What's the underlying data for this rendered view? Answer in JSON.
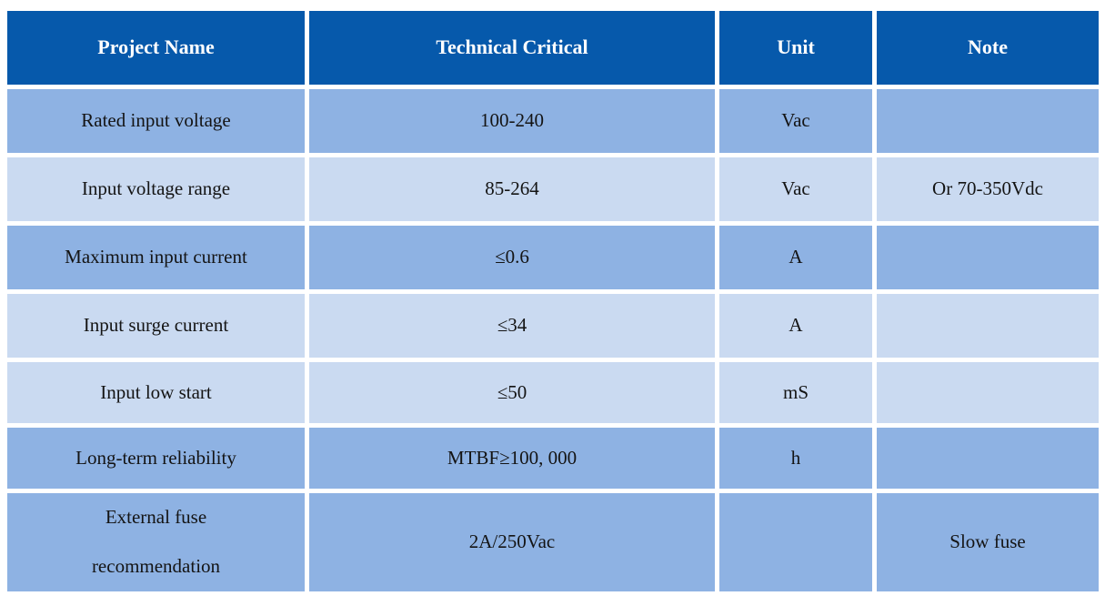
{
  "palette": {
    "header_bg": "#0659AB",
    "header_text": "#FFFFFF",
    "row_medium_bg": "#8EB2E3",
    "row_light_bg": "#CADAF1",
    "body_text": "#141414",
    "grid_gap": "#FFFFFF"
  },
  "table": {
    "headers": [
      "Project Name",
      "Technical Critical",
      "Unit",
      "Note"
    ],
    "rows": [
      {
        "project": "Rated input voltage",
        "value": "100-240",
        "unit": "Vac",
        "note": "",
        "shade": "medium"
      },
      {
        "project": "Input voltage range",
        "value": "85-264",
        "unit": "Vac",
        "note": "Or 70-350Vdc",
        "shade": "light"
      },
      {
        "project": "Maximum input current",
        "value": "≤0.6",
        "unit": "A",
        "note": "",
        "shade": "medium"
      },
      {
        "project": "Input surge current",
        "value": "≤34",
        "unit": "A",
        "note": "",
        "shade": "light"
      },
      {
        "project": "Input low start",
        "value": "≤50",
        "unit": "mS",
        "note": "",
        "shade": "light"
      },
      {
        "project": "Long-term reliability",
        "value": "MTBF≥100, 000",
        "unit": "h",
        "note": "",
        "shade": "medium"
      },
      {
        "project": "External fuse\nrecommendation",
        "value": "2A/250Vac",
        "unit": "",
        "note": "Slow fuse",
        "shade": "medium"
      }
    ]
  }
}
